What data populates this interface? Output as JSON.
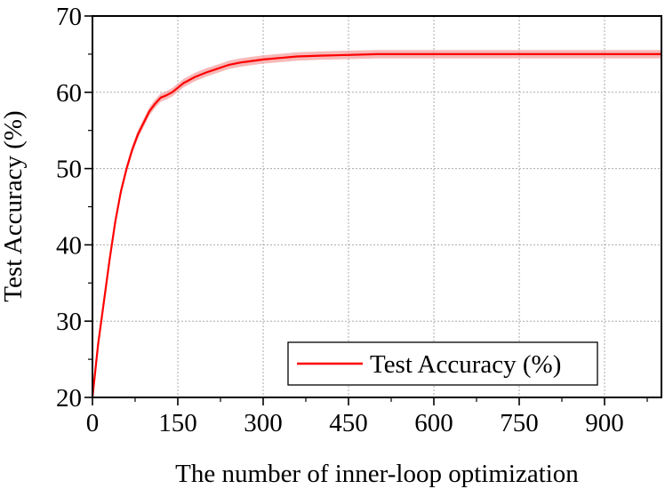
{
  "chart_data": {
    "type": "line",
    "title": "",
    "xlabel": "The number of inner-loop optimization",
    "ylabel": "Test Accuracy (%)",
    "xlim": [
      0,
      1000
    ],
    "ylim": [
      20,
      70
    ],
    "xticks": [
      0,
      150,
      300,
      450,
      600,
      750,
      900
    ],
    "yticks": [
      20,
      30,
      40,
      50,
      60,
      70
    ],
    "grid": true,
    "legend_position": "bottom-right",
    "series": [
      {
        "name": "Test Accuracy (%)",
        "color": "#ff0000",
        "band_color": "#f4a0a0",
        "x": [
          0,
          10,
          20,
          30,
          40,
          50,
          60,
          70,
          80,
          90,
          100,
          110,
          120,
          130,
          140,
          150,
          160,
          180,
          200,
          220,
          240,
          260,
          280,
          300,
          330,
          360,
          400,
          450,
          500,
          600,
          700,
          800,
          900,
          1000
        ],
        "y": [
          20.0,
          27.0,
          32.5,
          38.0,
          43.0,
          47.0,
          50.0,
          52.5,
          54.5,
          56.0,
          57.5,
          58.5,
          59.3,
          59.6,
          60.0,
          60.6,
          61.2,
          62.0,
          62.6,
          63.1,
          63.6,
          63.9,
          64.1,
          64.3,
          64.5,
          64.7,
          64.8,
          64.9,
          65.0,
          65.0,
          65.0,
          65.0,
          65.0,
          65.0
        ],
        "band_halfwidth": 0.55
      }
    ]
  }
}
